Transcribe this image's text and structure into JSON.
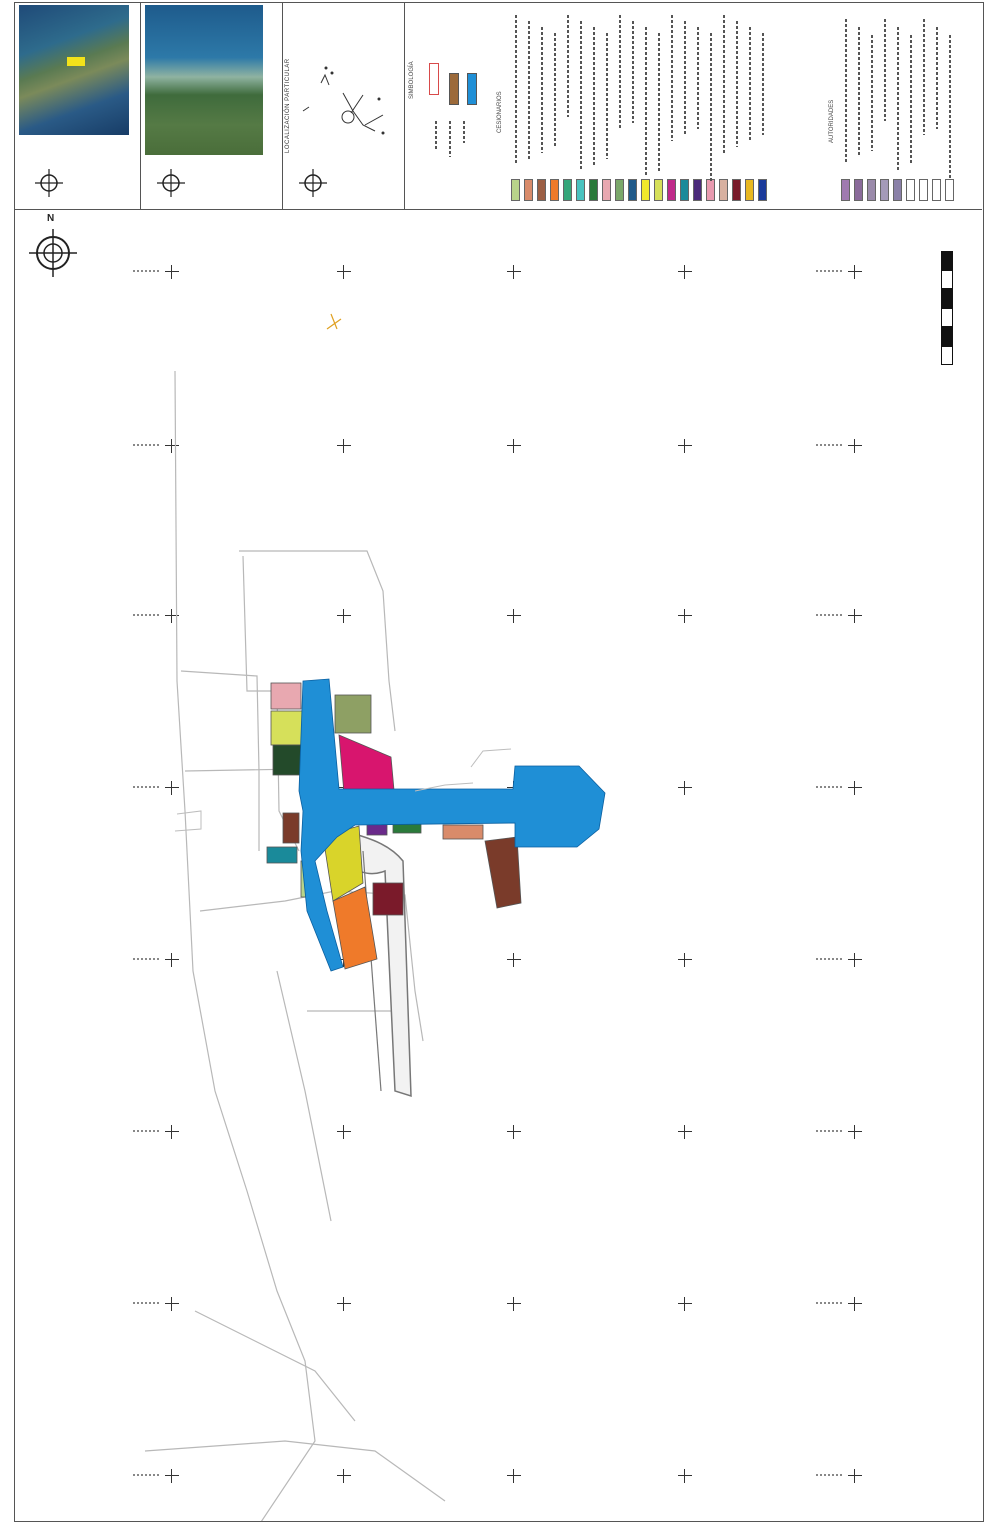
{
  "cartouche": {
    "panel_localizacion_particular": "LOCALIZACIÓN PARTICULAR",
    "panel_simbologia": "SIMBOLOGÍA",
    "heading_cesionarios": "CESIONARIOS",
    "heading_autoridades": "AUTORIDADES"
  },
  "map": {
    "north_label": "N",
    "colors": {
      "water_blue": "#1f8fd6",
      "magenta": "#d8156e",
      "orange": "#ef7a2a",
      "yellow": "#d9d42a",
      "brown": "#7a3b2a",
      "olive": "#8ea064",
      "pink": "#e8a8b0",
      "dark_green": "#234a2a"
    }
  },
  "legend_colors": {
    "cesionarios": [
      "#b8d48a",
      "#d98b6a",
      "#9c5f44",
      "#ef7a2a",
      "#35a67a",
      "#49c2c0",
      "#2a7a3a",
      "#e8a8b0",
      "#7aa86a",
      "#1f5a8a",
      "#f1e82c",
      "#d6e05a",
      "#c02a8a",
      "#1a8a9a",
      "#4a2a7a",
      "#e89ab0",
      "#d8b0a0",
      "#7a1a2a",
      "#e8b820",
      "#1a3a9a"
    ],
    "autoridades": [
      "#a07ab0",
      "#8a6a9a",
      "#9a8aaa",
      "#a49ab8",
      "#8a80a8",
      "#ffffff",
      "#ffffff",
      "#ffffff",
      "#ffffff"
    ],
    "simbologia": [
      "#ffffff",
      "#9c6a3a",
      "#1f8fd6"
    ]
  }
}
